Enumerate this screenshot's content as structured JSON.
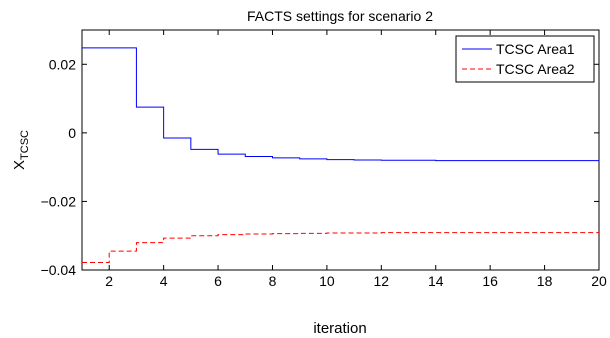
{
  "chart_data": {
    "type": "line",
    "step": true,
    "title": "FACTS settings for scenario 2",
    "xlabel": "iteration",
    "ylabel": "X",
    "ylabel_subscript": "TCSC",
    "xlim": [
      1,
      20
    ],
    "ylim": [
      -0.04,
      0.03
    ],
    "xticks": [
      2,
      4,
      6,
      8,
      10,
      12,
      14,
      16,
      18,
      20
    ],
    "yticks": [
      -0.04,
      -0.02,
      0,
      0.02
    ],
    "ytick_labels": [
      "−0.04",
      "−0.02",
      "0",
      "0.02"
    ],
    "grid": false,
    "legend_position": "top-right",
    "x": [
      1,
      2,
      3,
      4,
      5,
      6,
      7,
      8,
      9,
      10,
      11,
      12,
      13,
      14,
      15,
      16,
      17,
      18,
      19,
      20
    ],
    "series": [
      {
        "name": "TCSC Area1",
        "color": "#0000ff",
        "dash": "solid",
        "values": [
          0.0248,
          0.0248,
          0.0075,
          -0.0015,
          -0.0048,
          -0.0062,
          -0.0069,
          -0.0073,
          -0.0076,
          -0.0078,
          -0.0079,
          -0.008,
          -0.008,
          -0.0081,
          -0.0081,
          -0.0081,
          -0.0081,
          -0.0081,
          -0.0081,
          -0.0081
        ]
      },
      {
        "name": "TCSC Area2",
        "color": "#ff0000",
        "dash": "dashed",
        "values": [
          -0.0378,
          -0.0345,
          -0.032,
          -0.0307,
          -0.03,
          -0.0297,
          -0.0295,
          -0.0294,
          -0.0293,
          -0.0292,
          -0.0292,
          -0.0291,
          -0.0291,
          -0.0291,
          -0.0291,
          -0.0291,
          -0.0291,
          -0.0291,
          -0.0291,
          -0.0291
        ]
      }
    ]
  }
}
